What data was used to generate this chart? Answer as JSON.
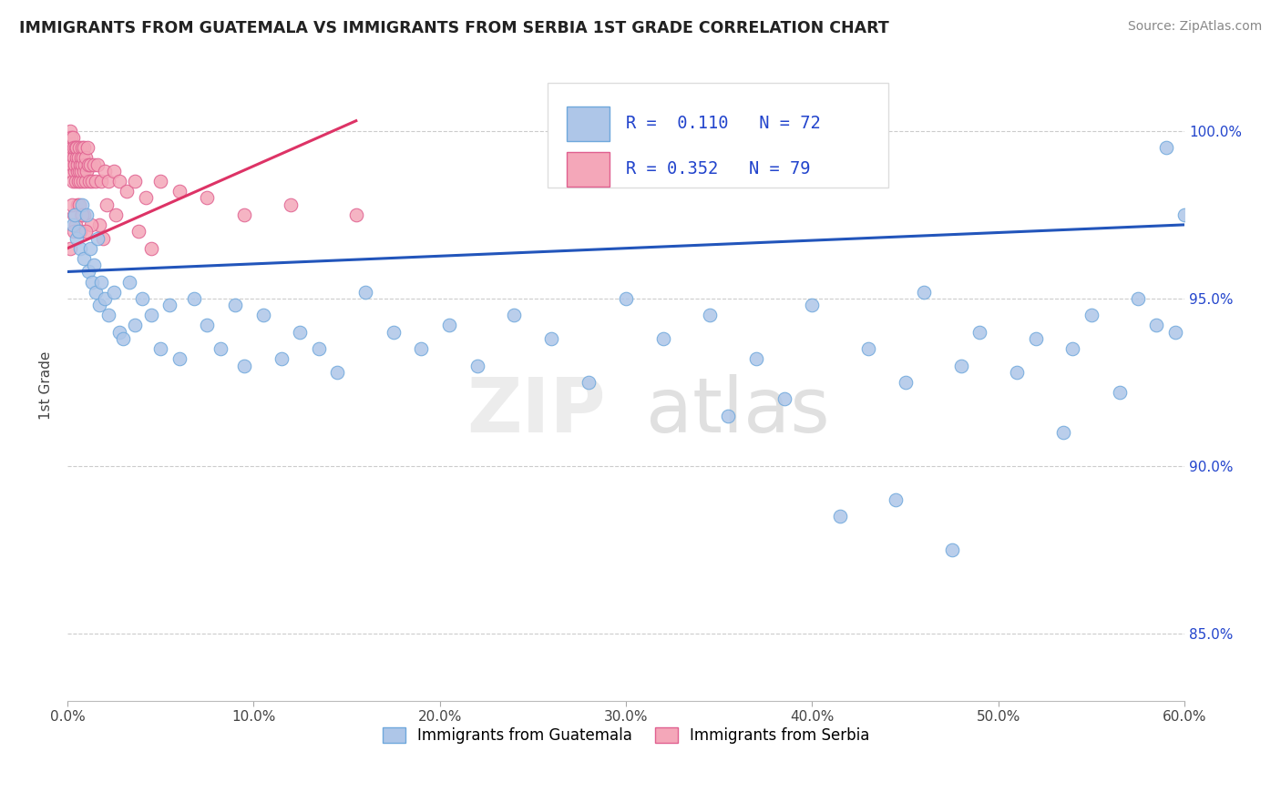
{
  "title": "IMMIGRANTS FROM GUATEMALA VS IMMIGRANTS FROM SERBIA 1ST GRADE CORRELATION CHART",
  "source": "Source: ZipAtlas.com",
  "ylabel": "1st Grade",
  "xlim": [
    0.0,
    60.0
  ],
  "ylim": [
    83.0,
    101.8
  ],
  "ytick_positions": [
    85.0,
    90.0,
    95.0,
    100.0
  ],
  "right_ytick_labels": [
    "85.0%",
    "90.0%",
    "95.0%",
    "100.0%"
  ],
  "xtick_positions": [
    0,
    10,
    20,
    30,
    40,
    50,
    60
  ],
  "xtick_labels": [
    "0.0%",
    "10.0%",
    "20.0%",
    "30.0%",
    "40.0%",
    "50.0%",
    "60.0%"
  ],
  "color_blue_fill": "#AEC6E8",
  "color_blue_edge": "#6FA8DC",
  "color_pink_fill": "#F4A7B9",
  "color_pink_edge": "#E06090",
  "trendline_blue": "#2255BB",
  "trendline_pink": "#DD3366",
  "legend_label1": "Immigrants from Guatemala",
  "legend_label2": "Immigrants from Serbia",
  "guatemala_x": [
    0.3,
    0.4,
    0.5,
    0.6,
    0.7,
    0.8,
    0.9,
    1.0,
    1.1,
    1.2,
    1.3,
    1.4,
    1.5,
    1.6,
    1.7,
    1.8,
    2.0,
    2.2,
    2.5,
    2.8,
    3.0,
    3.3,
    3.6,
    4.0,
    4.5,
    5.0,
    5.5,
    6.0,
    6.8,
    7.5,
    8.2,
    9.0,
    9.5,
    10.5,
    11.5,
    12.5,
    13.5,
    14.5,
    16.0,
    17.5,
    19.0,
    20.5,
    22.0,
    24.0,
    26.0,
    28.0,
    30.0,
    32.0,
    34.5,
    37.0,
    40.0,
    43.0,
    46.0,
    49.0,
    52.0,
    55.0,
    57.5,
    59.0,
    59.5,
    60.0,
    35.5,
    38.5,
    45.0,
    48.0,
    51.0,
    54.0,
    56.5,
    58.5,
    41.5,
    44.5,
    47.5,
    53.5
  ],
  "guatemala_y": [
    97.2,
    97.5,
    96.8,
    97.0,
    96.5,
    97.8,
    96.2,
    97.5,
    95.8,
    96.5,
    95.5,
    96.0,
    95.2,
    96.8,
    94.8,
    95.5,
    95.0,
    94.5,
    95.2,
    94.0,
    93.8,
    95.5,
    94.2,
    95.0,
    94.5,
    93.5,
    94.8,
    93.2,
    95.0,
    94.2,
    93.5,
    94.8,
    93.0,
    94.5,
    93.2,
    94.0,
    93.5,
    92.8,
    95.2,
    94.0,
    93.5,
    94.2,
    93.0,
    94.5,
    93.8,
    92.5,
    95.0,
    93.8,
    94.5,
    93.2,
    94.8,
    93.5,
    95.2,
    94.0,
    93.8,
    94.5,
    95.0,
    99.5,
    94.0,
    97.5,
    91.5,
    92.0,
    92.5,
    93.0,
    92.8,
    93.5,
    92.2,
    94.2,
    88.5,
    89.0,
    87.5,
    91.0
  ],
  "serbia_x": [
    0.05,
    0.1,
    0.12,
    0.15,
    0.18,
    0.2,
    0.22,
    0.25,
    0.28,
    0.3,
    0.32,
    0.35,
    0.38,
    0.4,
    0.42,
    0.45,
    0.48,
    0.5,
    0.52,
    0.55,
    0.58,
    0.6,
    0.62,
    0.65,
    0.68,
    0.7,
    0.72,
    0.75,
    0.78,
    0.8,
    0.82,
    0.85,
    0.88,
    0.9,
    0.92,
    0.95,
    0.98,
    1.0,
    1.05,
    1.1,
    1.15,
    1.2,
    1.3,
    1.4,
    1.5,
    1.6,
    1.8,
    2.0,
    2.2,
    2.5,
    2.8,
    3.2,
    3.6,
    4.2,
    5.0,
    6.0,
    7.5,
    9.5,
    12.0,
    15.5,
    4.5,
    3.8,
    2.6,
    1.9,
    1.7,
    0.75,
    0.55,
    0.42,
    0.32,
    0.22,
    0.68,
    0.88,
    1.25,
    0.15,
    0.35,
    0.62,
    0.78,
    0.95,
    2.1
  ],
  "serbia_y": [
    99.8,
    99.5,
    100.0,
    99.2,
    99.8,
    98.8,
    99.5,
    99.0,
    99.8,
    98.5,
    99.2,
    99.5,
    98.8,
    99.0,
    99.5,
    98.5,
    99.2,
    99.5,
    98.8,
    99.0,
    98.5,
    99.2,
    98.8,
    99.5,
    98.5,
    99.0,
    99.2,
    98.8,
    99.5,
    99.0,
    98.5,
    99.2,
    98.8,
    99.5,
    99.0,
    98.5,
    99.2,
    98.8,
    99.5,
    99.0,
    98.5,
    99.0,
    98.5,
    99.0,
    98.5,
    99.0,
    98.5,
    98.8,
    98.5,
    98.8,
    98.5,
    98.2,
    98.5,
    98.0,
    98.5,
    98.2,
    98.0,
    97.5,
    97.8,
    97.5,
    96.5,
    97.0,
    97.5,
    96.8,
    97.2,
    97.5,
    97.8,
    97.2,
    97.5,
    97.8,
    97.0,
    97.5,
    97.2,
    96.5,
    97.0,
    97.8,
    97.5,
    97.0,
    97.8
  ],
  "blue_trend_x0": 0.0,
  "blue_trend_y0": 95.8,
  "blue_trend_x1": 60.0,
  "blue_trend_y1": 97.2,
  "pink_trend_x0": 0.0,
  "pink_trend_y0": 96.5,
  "pink_trend_x1": 15.5,
  "pink_trend_y1": 100.3
}
